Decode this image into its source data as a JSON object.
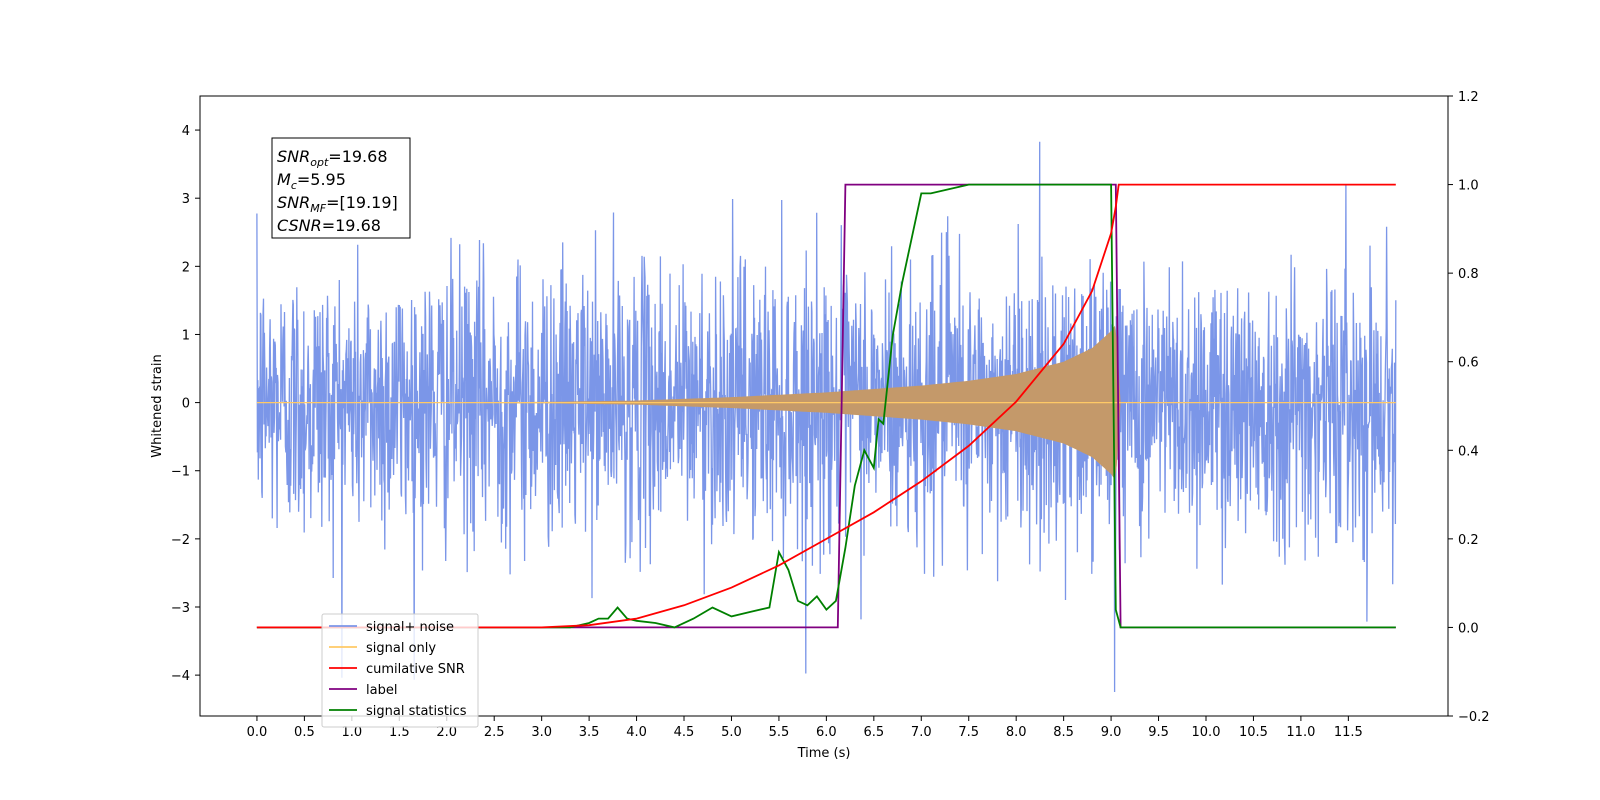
{
  "chart_data": {
    "type": "line",
    "xlabel": "Time (s)",
    "ylabel": "Whitened strain",
    "xlim": [
      -0.6,
      12.55
    ],
    "ylim": [
      -4.6,
      4.5
    ],
    "y2lim": [
      -0.2,
      1.2
    ],
    "x_ticks": [
      "0.0",
      "0.5",
      "1.0",
      "1.5",
      "2.0",
      "2.5",
      "3.0",
      "3.5",
      "4.0",
      "4.5",
      "5.0",
      "5.5",
      "6.0",
      "6.5",
      "7.0",
      "7.5",
      "8.0",
      "8.5",
      "9.0",
      "9.5",
      "10.0",
      "10.5",
      "11.0",
      "11.5"
    ],
    "y_ticks": [
      "4",
      "3",
      "2",
      "1",
      "0",
      "−1",
      "−2",
      "−3",
      "−4"
    ],
    "y2_ticks": [
      "1.2",
      "1.0",
      "0.8",
      "0.6",
      "0.4",
      "0.2",
      "0.0",
      "−0.2"
    ],
    "annotation": {
      "lines": [
        {
          "var": "SNR",
          "sub": "opt",
          "value": "=19.68"
        },
        {
          "var": "M",
          "sub": "c",
          "value": "=5.95"
        },
        {
          "var": "SNR",
          "sub": "MF",
          "value": "=[19.19]"
        },
        {
          "var": "CSNR",
          "sub": "",
          "value": "=19.68"
        }
      ]
    },
    "legend": {
      "placement": "lower-left",
      "entries": [
        {
          "label": "signal+ noise",
          "color": "#7b96e8"
        },
        {
          "label": "signal only",
          "color": "#ffc966"
        },
        {
          "label": "cumilative SNR",
          "color": "#ff0000"
        },
        {
          "label": "label",
          "color": "#800080"
        },
        {
          "label": "signal statistics",
          "color": "#008000"
        }
      ]
    },
    "series": [
      {
        "name": "signal+ noise",
        "axis": "left",
        "color": "#7b96e8",
        "x_range": [
          0.0,
          12.0
        ],
        "typical_amplitude": 2.2,
        "peak": 4.07
      },
      {
        "name": "signal only",
        "axis": "left",
        "color": "#c4996a",
        "envelope_x": [
          0.0,
          2.0,
          3.0,
          4.0,
          5.0,
          6.0,
          7.0,
          7.5,
          8.0,
          8.5,
          8.8,
          9.0,
          9.05,
          9.1,
          12.0
        ],
        "envelope_y": [
          0.0,
          0.005,
          0.01,
          0.03,
          0.08,
          0.15,
          0.25,
          0.32,
          0.42,
          0.6,
          0.8,
          1.05,
          1.15,
          0.0,
          0.0
        ]
      },
      {
        "name": "cumilative SNR",
        "axis": "right",
        "color": "#ff0000",
        "x": [
          0.0,
          3.0,
          3.5,
          4.0,
          4.5,
          5.0,
          5.5,
          6.0,
          6.5,
          7.0,
          7.5,
          8.0,
          8.5,
          8.8,
          9.0,
          9.05,
          9.08,
          9.1,
          10.0,
          11.0,
          12.0
        ],
        "y": [
          0.0,
          0.0,
          0.005,
          0.02,
          0.05,
          0.09,
          0.14,
          0.2,
          0.26,
          0.33,
          0.41,
          0.51,
          0.64,
          0.76,
          0.89,
          0.95,
          1.0,
          1.0,
          1.0,
          1.0,
          1.0
        ]
      },
      {
        "name": "label",
        "axis": "right",
        "color": "#800080",
        "x": [
          0.0,
          6.12,
          6.2,
          9.0,
          9.05,
          9.1,
          12.0
        ],
        "y": [
          0.0,
          0.0,
          1.0,
          1.0,
          1.0,
          0.0,
          0.0
        ]
      },
      {
        "name": "signal statistics",
        "axis": "right",
        "color": "#008000",
        "x": [
          0.0,
          3.0,
          3.3,
          3.5,
          3.6,
          3.7,
          3.8,
          3.9,
          4.0,
          4.2,
          4.4,
          4.6,
          4.8,
          5.0,
          5.2,
          5.4,
          5.5,
          5.6,
          5.7,
          5.8,
          5.9,
          6.0,
          6.1,
          6.2,
          6.3,
          6.4,
          6.5,
          6.55,
          6.6,
          6.7,
          6.8,
          6.9,
          7.0,
          7.1,
          7.3,
          7.5,
          8.0,
          9.0,
          9.05,
          9.1,
          12.0
        ],
        "y": [
          0.0,
          0.0,
          0.0,
          0.01,
          0.02,
          0.02,
          0.045,
          0.02,
          0.015,
          0.01,
          0.0,
          0.02,
          0.045,
          0.025,
          0.035,
          0.045,
          0.17,
          0.13,
          0.06,
          0.05,
          0.07,
          0.04,
          0.06,
          0.18,
          0.32,
          0.4,
          0.36,
          0.47,
          0.46,
          0.66,
          0.78,
          0.88,
          0.98,
          0.98,
          0.99,
          1.0,
          1.0,
          1.0,
          0.04,
          0.0,
          0.0
        ]
      }
    ]
  }
}
